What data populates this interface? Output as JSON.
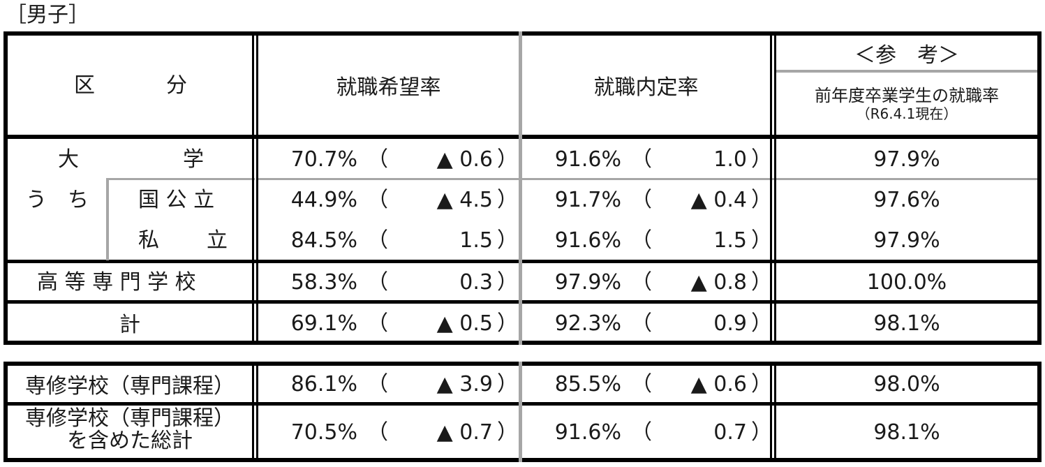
{
  "caption": "［男子］",
  "header": {
    "category_left": "区",
    "category_right": "分",
    "col_hope": "就職希望率",
    "col_offer": "就職内定率",
    "ref_title": "＜参　考＞",
    "ref_line1": "前年度卒業学生の就職率",
    "ref_line2": "（R6.4.1現在）"
  },
  "labels": {
    "univ_left": "大",
    "univ_right": "学",
    "uchi": "う　ち",
    "national_public": "国 公 立",
    "private_left": "私",
    "private_right": "立",
    "kosen": "高 等 専 門 学 校",
    "total": "計",
    "senshu": "専修学校（専門課程）",
    "senshu_total_1": "専修学校（専門課程）",
    "senshu_total_2": "を含めた総計"
  },
  "paren_open": "（",
  "paren_close": "）",
  "rows": [
    {
      "hope": "70.7%",
      "hope_chg": "▲ 0.6",
      "offer": "91.6%",
      "offer_chg": "1.0",
      "ref": "97.9%"
    },
    {
      "hope": "44.9%",
      "hope_chg": "▲ 4.5",
      "offer": "91.7%",
      "offer_chg": "▲ 0.4",
      "ref": "97.6%"
    },
    {
      "hope": "84.5%",
      "hope_chg": "1.5",
      "offer": "91.6%",
      "offer_chg": "1.5",
      "ref": "97.9%"
    },
    {
      "hope": "58.3%",
      "hope_chg": "0.3",
      "offer": "97.9%",
      "offer_chg": "▲ 0.8",
      "ref": "100.0%"
    },
    {
      "hope": "69.1%",
      "hope_chg": "▲ 0.5",
      "offer": "92.3%",
      "offer_chg": "0.9",
      "ref": "98.1%"
    },
    {
      "hope": "86.1%",
      "hope_chg": "▲ 3.9",
      "offer": "85.5%",
      "offer_chg": "▲ 0.6",
      "ref": "98.0%"
    },
    {
      "hope": "70.5%",
      "hope_chg": "▲ 0.7",
      "offer": "91.6%",
      "offer_chg": "0.7",
      "ref": "98.1%"
    }
  ]
}
